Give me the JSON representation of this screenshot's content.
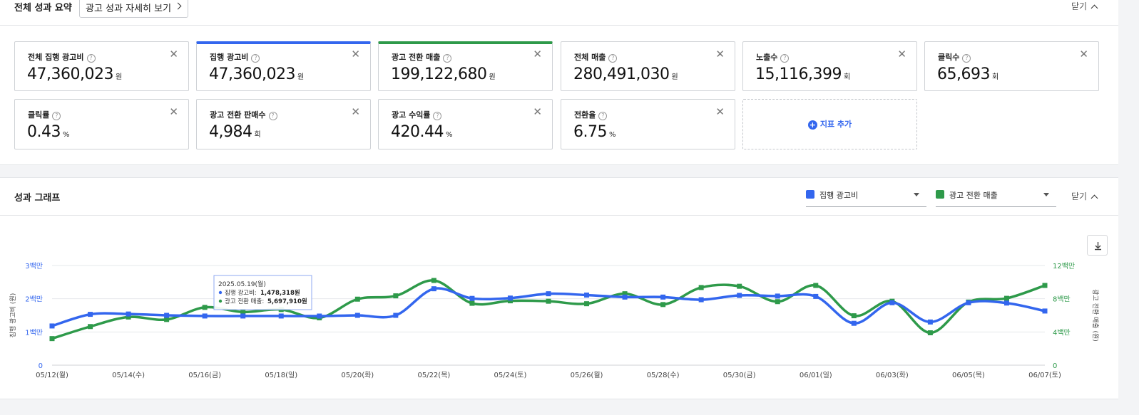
{
  "summary": {
    "title": "전체 성과 요약",
    "detail_button": "광고 성과 자세히 보기",
    "close_label": "닫기",
    "metrics": [
      {
        "label": "전체 집행 광고비",
        "value": "47,360,023",
        "unit": "원"
      },
      {
        "label": "집행 광고비",
        "value": "47,360,023",
        "unit": "원",
        "accent": "#3366ee"
      },
      {
        "label": "광고 전환 매출",
        "value": "199,122,680",
        "unit": "원",
        "accent": "#2e9a4a"
      },
      {
        "label": "전체 매출",
        "value": "280,491,030",
        "unit": "원"
      },
      {
        "label": "노출수",
        "value": "15,116,399",
        "unit": "회"
      },
      {
        "label": "클릭수",
        "value": "65,693",
        "unit": "회"
      },
      {
        "label": "클릭률",
        "value": "0.43",
        "unit": "%"
      },
      {
        "label": "광고 전환 판매수",
        "value": "4,984",
        "unit": "회"
      },
      {
        "label": "광고 수익률",
        "value": "420.44",
        "unit": "%"
      },
      {
        "label": "전환율",
        "value": "6.75",
        "unit": "%"
      }
    ],
    "add_metric_label": "지표 추가"
  },
  "graph": {
    "title": "성과 그래프",
    "close_label": "닫기",
    "select1": {
      "label": "집행 광고비",
      "color": "#3366ee"
    },
    "select2": {
      "label": "광고 전환 매출",
      "color": "#2e9a4a"
    },
    "download_icon": "download-icon",
    "tooltip": {
      "date": "2025.05.19(월)",
      "line1_label": "집행 광고비:",
      "line1_value": "1,478,318원",
      "line2_label": "광고 전환 매출:",
      "line2_value": "5,697,910원"
    }
  },
  "chart_data": {
    "type": "line",
    "x": [
      "05/12(월)",
      "05/13",
      "05/14(수)",
      "05/15",
      "05/16(금)",
      "05/17",
      "05/18(일)",
      "05/19",
      "05/20(화)",
      "05/21",
      "05/22(목)",
      "05/23",
      "05/24(토)",
      "05/25",
      "05/26(월)",
      "05/27",
      "05/28(수)",
      "05/29",
      "05/30(금)",
      "05/31",
      "06/01(일)",
      "06/02",
      "06/03(화)",
      "06/04",
      "06/05(목)",
      "06/06",
      "06/07(토)"
    ],
    "x_tick_labels": [
      "05/12(월)",
      "05/14(수)",
      "05/16(금)",
      "05/18(일)",
      "05/20(화)",
      "05/22(목)",
      "05/24(토)",
      "05/26(월)",
      "05/28(수)",
      "05/30(금)",
      "06/01(일)",
      "06/03(화)",
      "06/05(목)",
      "06/07(토)"
    ],
    "series": [
      {
        "name": "집행 광고비",
        "axis": "left",
        "color": "#3366ee",
        "values": [
          1180000,
          1530000,
          1540000,
          1500000,
          1480000,
          1480000,
          1480000,
          1478318,
          1500000,
          1500000,
          2300000,
          2010000,
          2020000,
          2150000,
          2110000,
          2050000,
          2050000,
          1970000,
          2100000,
          2080000,
          2070000,
          1260000,
          1880000,
          1300000,
          1880000,
          1870000,
          1630000
        ]
      },
      {
        "name": "광고 전환 매출",
        "axis": "right",
        "color": "#2e9a4a",
        "values": [
          3200000,
          4650000,
          5800000,
          5500000,
          6960000,
          6400000,
          6700000,
          5697910,
          7950000,
          8350000,
          10200000,
          7450000,
          7750000,
          7700000,
          7400000,
          8600000,
          7300000,
          9350000,
          9500000,
          7650000,
          9600000,
          5950000,
          7700000,
          3900000,
          7600000,
          8050000,
          9600000
        ]
      }
    ],
    "y_left": {
      "label": "집행 광고비 (원)",
      "ticks": [
        "0",
        "1백만",
        "2백만",
        "3백만"
      ],
      "range": [
        0,
        3000000
      ]
    },
    "y_right": {
      "label": "광고 전환 매출 (원)",
      "ticks": [
        "0",
        "4백만",
        "8백만",
        "12백만"
      ],
      "range": [
        0,
        12000000
      ]
    },
    "grid": true,
    "smooth": true,
    "tooltip_index": 7
  }
}
